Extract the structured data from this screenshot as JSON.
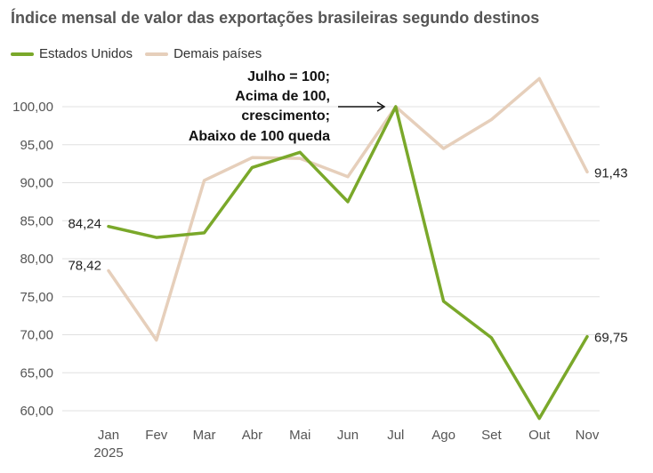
{
  "chart_data": {
    "type": "line",
    "title": "Índice mensal de valor das exportações brasileiras segundo destinos",
    "categories": [
      "Jan",
      "Fev",
      "Mar",
      "Abr",
      "Mai",
      "Jun",
      "Jul",
      "Ago",
      "Set",
      "Out",
      "Nov"
    ],
    "year_label": "2025",
    "ylim": [
      58,
      105
    ],
    "yticks": [
      "60,00",
      "65,00",
      "70,00",
      "75,00",
      "80,00",
      "85,00",
      "90,00",
      "95,00",
      "100,00"
    ],
    "ytick_values": [
      60,
      65,
      70,
      75,
      80,
      85,
      90,
      95,
      100
    ],
    "series": [
      {
        "name": "Estados Unidos",
        "color": "#7aa82a",
        "values": [
          84.24,
          82.8,
          83.4,
          92.0,
          94.0,
          87.5,
          100.0,
          74.4,
          69.6,
          59.0,
          69.75
        ],
        "start_label": "84,24",
        "end_label": "69,75"
      },
      {
        "name": "Demais países",
        "color": "#e6cfbb",
        "values": [
          78.42,
          69.3,
          90.3,
          93.3,
          93.2,
          90.8,
          100.0,
          94.5,
          98.3,
          103.7,
          91.43
        ],
        "start_label": "78,42",
        "end_label": "91,43"
      }
    ],
    "annotation": [
      "Julho = 100;",
      "Acima de 100,",
      "crescimento;",
      "Abaixo de 100 queda"
    ]
  }
}
